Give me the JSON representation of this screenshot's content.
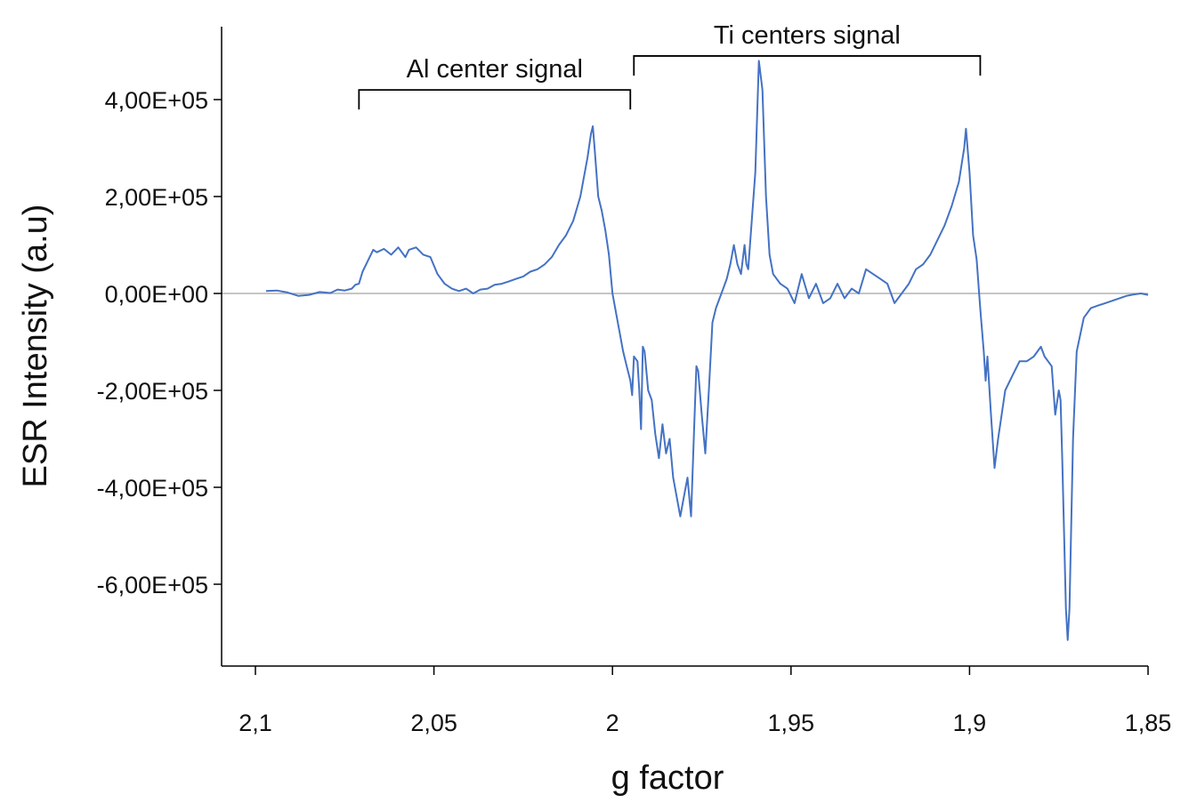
{
  "chart_data": {
    "type": "line",
    "title": "",
    "xlabel": "g factor",
    "ylabel": "ESR Intensity (a.u)",
    "xlim": [
      2.11,
      1.85
    ],
    "ylim": [
      -760000.0,
      550000.0
    ],
    "x_reversed": true,
    "grid": false,
    "legend": "none",
    "x_ticks": [
      {
        "value": 2.1,
        "label": "2,1"
      },
      {
        "value": 2.05,
        "label": "2,05"
      },
      {
        "value": 2.0,
        "label": "2"
      },
      {
        "value": 1.95,
        "label": "1,95"
      },
      {
        "value": 1.9,
        "label": "1,9"
      },
      {
        "value": 1.85,
        "label": "1,85"
      }
    ],
    "y_ticks": [
      {
        "value": 400000,
        "label": "4,00E+05"
      },
      {
        "value": 200000,
        "label": "2,00E+05"
      },
      {
        "value": 0,
        "label": "0,00E+00"
      },
      {
        "value": -200000,
        "label": "-2,00E+05"
      },
      {
        "value": -400000,
        "label": "-4,00E+05"
      },
      {
        "value": -600000,
        "label": "-6,00E+05"
      }
    ],
    "zero_line": {
      "y": 0,
      "color": "#b3b3b3"
    },
    "annotations": [
      {
        "text": "Al center signal",
        "x_start": 2.071,
        "x_end": 1.995,
        "y": 420000.0
      },
      {
        "text": "Ti centers signal",
        "x_start": 1.994,
        "x_end": 1.897,
        "y": 490000.0
      }
    ],
    "series": [
      {
        "color": "#4472c4",
        "points": [
          [
            2.097,
            5000
          ],
          [
            2.094,
            6000
          ],
          [
            2.091,
            2000
          ],
          [
            2.088,
            -5000
          ],
          [
            2.085,
            -3000
          ],
          [
            2.082,
            3000
          ],
          [
            2.079,
            1000
          ],
          [
            2.077,
            8000
          ],
          [
            2.075,
            6000
          ],
          [
            2.073,
            10000
          ],
          [
            2.072,
            18000
          ],
          [
            2.071,
            20000
          ],
          [
            2.07,
            45000
          ],
          [
            2.069,
            60000
          ],
          [
            2.068,
            75000
          ],
          [
            2.067,
            90000
          ],
          [
            2.066,
            85000
          ],
          [
            2.064,
            92000
          ],
          [
            2.062,
            80000
          ],
          [
            2.06,
            95000
          ],
          [
            2.058,
            75000
          ],
          [
            2.057,
            90000
          ],
          [
            2.055,
            95000
          ],
          [
            2.053,
            80000
          ],
          [
            2.051,
            75000
          ],
          [
            2.049,
            40000
          ],
          [
            2.047,
            20000
          ],
          [
            2.045,
            10000
          ],
          [
            2.043,
            5000
          ],
          [
            2.041,
            10000
          ],
          [
            2.039,
            0
          ],
          [
            2.037,
            8000
          ],
          [
            2.035,
            10000
          ],
          [
            2.033,
            18000
          ],
          [
            2.031,
            20000
          ],
          [
            2.029,
            25000
          ],
          [
            2.027,
            30000
          ],
          [
            2.025,
            35000
          ],
          [
            2.023,
            45000
          ],
          [
            2.021,
            50000
          ],
          [
            2.019,
            60000
          ],
          [
            2.017,
            75000
          ],
          [
            2.015,
            100000
          ],
          [
            2.013,
            120000
          ],
          [
            2.011,
            150000
          ],
          [
            2.009,
            200000
          ],
          [
            2.007,
            280000
          ],
          [
            2.006,
            330000
          ],
          [
            2.0055,
            345000
          ],
          [
            2.005,
            300000
          ],
          [
            2.004,
            200000
          ],
          [
            2.003,
            170000
          ],
          [
            2.002,
            130000
          ],
          [
            2.001,
            80000
          ],
          [
            2.0,
            0
          ],
          [
            1.999,
            -40000
          ],
          [
            1.998,
            -80000
          ],
          [
            1.997,
            -120000
          ],
          [
            1.996,
            -150000
          ],
          [
            1.995,
            -180000
          ],
          [
            1.9945,
            -210000
          ],
          [
            1.994,
            -130000
          ],
          [
            1.993,
            -140000
          ],
          [
            1.9925,
            -200000
          ],
          [
            1.992,
            -280000
          ],
          [
            1.9915,
            -110000
          ],
          [
            1.991,
            -120000
          ],
          [
            1.99,
            -200000
          ],
          [
            1.989,
            -220000
          ],
          [
            1.988,
            -290000
          ],
          [
            1.987,
            -340000
          ],
          [
            1.986,
            -270000
          ],
          [
            1.985,
            -330000
          ],
          [
            1.984,
            -300000
          ],
          [
            1.983,
            -380000
          ],
          [
            1.982,
            -420000
          ],
          [
            1.981,
            -460000
          ],
          [
            1.98,
            -420000
          ],
          [
            1.979,
            -380000
          ],
          [
            1.978,
            -460000
          ],
          [
            1.977,
            -250000
          ],
          [
            1.9765,
            -150000
          ],
          [
            1.976,
            -160000
          ],
          [
            1.975,
            -250000
          ],
          [
            1.974,
            -330000
          ],
          [
            1.973,
            -200000
          ],
          [
            1.972,
            -60000
          ],
          [
            1.971,
            -30000
          ],
          [
            1.97,
            -10000
          ],
          [
            1.969,
            10000
          ],
          [
            1.968,
            30000
          ],
          [
            1.967,
            60000
          ],
          [
            1.966,
            100000
          ],
          [
            1.965,
            60000
          ],
          [
            1.964,
            40000
          ],
          [
            1.963,
            100000
          ],
          [
            1.9625,
            60000
          ],
          [
            1.962,
            50000
          ],
          [
            1.96,
            250000
          ],
          [
            1.959,
            480000
          ],
          [
            1.958,
            420000
          ],
          [
            1.957,
            200000
          ],
          [
            1.956,
            80000
          ],
          [
            1.955,
            40000
          ],
          [
            1.953,
            20000
          ],
          [
            1.951,
            10000
          ],
          [
            1.949,
            -20000
          ],
          [
            1.947,
            40000
          ],
          [
            1.945,
            -10000
          ],
          [
            1.943,
            20000
          ],
          [
            1.941,
            -20000
          ],
          [
            1.939,
            -10000
          ],
          [
            1.937,
            20000
          ],
          [
            1.935,
            -10000
          ],
          [
            1.933,
            10000
          ],
          [
            1.931,
            0
          ],
          [
            1.929,
            50000
          ],
          [
            1.927,
            40000
          ],
          [
            1.925,
            30000
          ],
          [
            1.923,
            20000
          ],
          [
            1.921,
            -20000
          ],
          [
            1.919,
            0
          ],
          [
            1.917,
            20000
          ],
          [
            1.915,
            50000
          ],
          [
            1.913,
            60000
          ],
          [
            1.911,
            80000
          ],
          [
            1.909,
            110000
          ],
          [
            1.907,
            140000
          ],
          [
            1.905,
            180000
          ],
          [
            1.903,
            230000
          ],
          [
            1.9015,
            300000
          ],
          [
            1.901,
            340000
          ],
          [
            1.9,
            250000
          ],
          [
            1.899,
            120000
          ],
          [
            1.898,
            70000
          ],
          [
            1.897,
            -30000
          ],
          [
            1.896,
            -120000
          ],
          [
            1.8955,
            -180000
          ],
          [
            1.895,
            -130000
          ],
          [
            1.894,
            -250000
          ],
          [
            1.893,
            -360000
          ],
          [
            1.892,
            -300000
          ],
          [
            1.89,
            -200000
          ],
          [
            1.888,
            -170000
          ],
          [
            1.886,
            -140000
          ],
          [
            1.884,
            -140000
          ],
          [
            1.882,
            -130000
          ],
          [
            1.88,
            -110000
          ],
          [
            1.879,
            -130000
          ],
          [
            1.877,
            -150000
          ],
          [
            1.876,
            -250000
          ],
          [
            1.875,
            -200000
          ],
          [
            1.8745,
            -220000
          ],
          [
            1.874,
            -350000
          ],
          [
            1.873,
            -650000
          ],
          [
            1.8725,
            -715000
          ],
          [
            1.872,
            -650000
          ],
          [
            1.871,
            -300000
          ],
          [
            1.87,
            -120000
          ],
          [
            1.868,
            -50000
          ],
          [
            1.866,
            -30000
          ],
          [
            1.864,
            -25000
          ],
          [
            1.862,
            -20000
          ],
          [
            1.86,
            -15000
          ],
          [
            1.858,
            -10000
          ],
          [
            1.856,
            -5000
          ],
          [
            1.854,
            -2000
          ],
          [
            1.852,
            0
          ],
          [
            1.85,
            -3000
          ]
        ]
      }
    ]
  }
}
